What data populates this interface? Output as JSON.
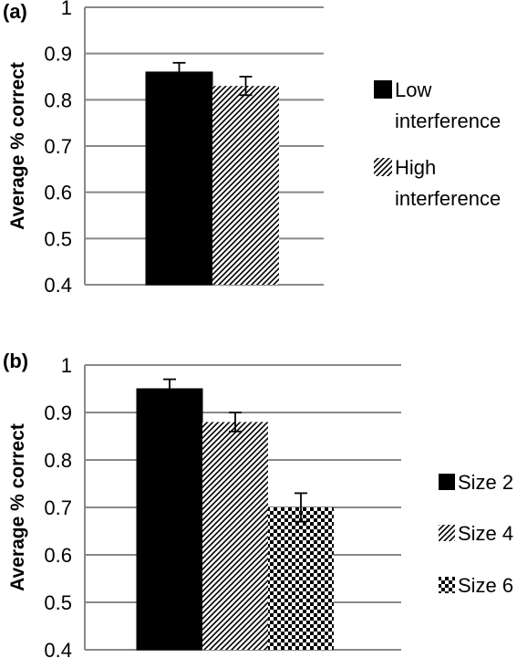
{
  "chart_data": [
    {
      "panel_label": "(a)",
      "type": "bar",
      "ylabel": "Average % correct",
      "ylim": [
        0.4,
        1
      ],
      "yticks": [
        "0.4",
        "0.5",
        "0.6",
        "0.7",
        "0.8",
        "0.9",
        "1"
      ],
      "grid": true,
      "legend_position": "right",
      "series": [
        {
          "name": "Low interference",
          "name_lines": [
            "Low",
            "interference"
          ],
          "value": 0.86,
          "error": 0.02,
          "pattern": "solid"
        },
        {
          "name": "High interference",
          "name_lines": [
            "High",
            "interference"
          ],
          "value": 0.83,
          "error": 0.02,
          "pattern": "diagonal"
        }
      ]
    },
    {
      "panel_label": "(b)",
      "type": "bar",
      "ylabel": "Average % correct",
      "ylim": [
        0.4,
        1
      ],
      "yticks": [
        "0.4",
        "0.5",
        "0.6",
        "0.7",
        "0.8",
        "0.9",
        "1"
      ],
      "grid": true,
      "legend_position": "right",
      "series": [
        {
          "name": "Size 2",
          "name_lines": [
            "Size 2"
          ],
          "value": 0.95,
          "error": 0.02,
          "pattern": "solid"
        },
        {
          "name": "Size 4",
          "name_lines": [
            "Size 4"
          ],
          "value": 0.88,
          "error": 0.02,
          "pattern": "diagonal"
        },
        {
          "name": "Size 6",
          "name_lines": [
            "Size 6"
          ],
          "value": 0.7,
          "error": 0.03,
          "pattern": "checker"
        }
      ]
    }
  ]
}
